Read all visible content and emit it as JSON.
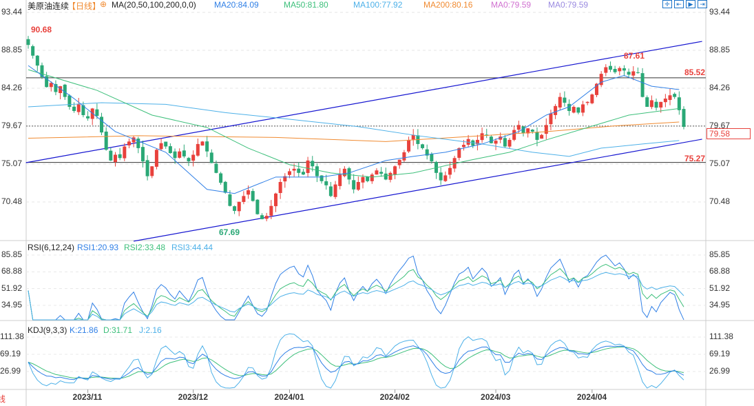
{
  "header": {
    "symbol": "美原油连续",
    "period": "【日线】",
    "ma_label": "MA(20,50,100,200,0,0)",
    "ma20": "MA20:84.09",
    "ma50": "MA50:81.80",
    "ma100": "MA100:77.92",
    "ma200": "MA200:80.16",
    "ma0a": "MA0:79.59",
    "ma0b": "MA0:79.59"
  },
  "rsi": {
    "label": "RSI(6,12,24)",
    "rsi1": "RSI1:20.93",
    "rsi2": "RSI2:33.48",
    "rsi3": "RSI3:44.44"
  },
  "kdj": {
    "label": "KDJ(9,3,3)",
    "k": "K:21.86",
    "d": "D:31.71",
    "j": "J:2.16"
  },
  "bottom_left": "线",
  "colors": {
    "up": "#e8413c",
    "down": "#2aa876",
    "ma20": "#2f7fe6",
    "ma50": "#3cbf7a",
    "ma100": "#4cb0e8",
    "ma200": "#f08a30",
    "channel": "#1515d0"
  },
  "chart_data": {
    "type": "candlestick",
    "price_axis": {
      "ticks": [
        "93.44",
        "88.85",
        "84.26",
        "79.67",
        "75.07",
        "70.48"
      ],
      "range": [
        70.48,
        93.44
      ]
    },
    "rsi_axis": {
      "ticks": [
        "85.85",
        "68.88",
        "51.92",
        "34.95"
      ]
    },
    "kdj_axis": {
      "ticks": [
        "111.38",
        "69.19",
        "26.99"
      ]
    },
    "dates": [
      "2023/11",
      "2023/12",
      "2024/01",
      "2024/02",
      "2024/03",
      "2024/04"
    ],
    "date_index": [
      13,
      36,
      57,
      80,
      102,
      123
    ],
    "closes": [
      89.5,
      88.2,
      87.0,
      85.6,
      84.4,
      84.9,
      83.8,
      84.5,
      83.2,
      82.0,
      81.5,
      82.3,
      81.0,
      80.6,
      81.8,
      80.9,
      78.9,
      76.8,
      75.5,
      76.2,
      75.8,
      77.2,
      77.8,
      78.3,
      77.0,
      75.4,
      73.6,
      74.8,
      76.8,
      77.6,
      77.2,
      76.4,
      75.8,
      76.6,
      76.0,
      75.4,
      76.2,
      77.5,
      77.8,
      76.6,
      75.2,
      74.0,
      72.8,
      71.6,
      70.0,
      69.4,
      70.5,
      71.2,
      71.9,
      70.6,
      69.0,
      68.4,
      68.8,
      70.0,
      71.5,
      72.9,
      73.6,
      74.2,
      74.5,
      74.0,
      73.8,
      75.5,
      74.8,
      73.6,
      73.0,
      72.5,
      71.2,
      72.6,
      73.8,
      74.5,
      73.2,
      72.0,
      72.9,
      73.5,
      73.0,
      73.8,
      74.3,
      73.9,
      73.2,
      74.0,
      74.8,
      75.6,
      76.5,
      78.0,
      78.6,
      77.5,
      77.0,
      76.1,
      75.4,
      74.0,
      73.1,
      73.7,
      74.6,
      75.8,
      77.0,
      77.4,
      78.1,
      77.3,
      78.0,
      78.8,
      78.5,
      77.6,
      77.9,
      78.4,
      77.2,
      78.0,
      79.2,
      79.8,
      78.8,
      79.4,
      79.0,
      78.0,
      78.6,
      79.8,
      81.2,
      82.1,
      83.2,
      82.5,
      81.5,
      82.0,
      81.3,
      82.3,
      82.6,
      83.5,
      84.8,
      86.0,
      86.8,
      86.5,
      86.2,
      86.7,
      86.4,
      85.9,
      86.3,
      86.1,
      83.2,
      82.0,
      82.8,
      81.9,
      82.6,
      83.0,
      83.4,
      83.2,
      81.6,
      79.58
    ],
    "ma20": [
      [
        0,
        87
      ],
      [
        10,
        83
      ],
      [
        19,
        79
      ],
      [
        30,
        76.5
      ],
      [
        39,
        72
      ],
      [
        45,
        71.5
      ],
      [
        54,
        73.5
      ],
      [
        64,
        73.5
      ],
      [
        70,
        74
      ],
      [
        78,
        75.5
      ],
      [
        84,
        76
      ],
      [
        91,
        76.5
      ],
      [
        99,
        77.5
      ],
      [
        107,
        79
      ],
      [
        113,
        81
      ],
      [
        118,
        82
      ],
      [
        125,
        85
      ],
      [
        130,
        85.8
      ],
      [
        136,
        84.5
      ],
      [
        142,
        84.09
      ]
    ],
    "ma50": [
      [
        0,
        86.5
      ],
      [
        15,
        84
      ],
      [
        27,
        81
      ],
      [
        39,
        79.5
      ],
      [
        48,
        77
      ],
      [
        57,
        75
      ],
      [
        66,
        74
      ],
      [
        75,
        73.5
      ],
      [
        84,
        74
      ],
      [
        96,
        75.5
      ],
      [
        105,
        76.5
      ],
      [
        113,
        78
      ],
      [
        122,
        79.5
      ],
      [
        131,
        81
      ],
      [
        142,
        81.8
      ]
    ],
    "ma100": [
      [
        0,
        82
      ],
      [
        16,
        82.5
      ],
      [
        30,
        82.3
      ],
      [
        43,
        81.3
      ],
      [
        57,
        80.5
      ],
      [
        72,
        79.6
      ],
      [
        85,
        78.5
      ],
      [
        99,
        77.5
      ],
      [
        110,
        76.5
      ],
      [
        118,
        76
      ],
      [
        125,
        77
      ],
      [
        134,
        77.5
      ],
      [
        142,
        77.92
      ]
    ],
    "ma200": [
      [
        0,
        78.2
      ],
      [
        24,
        78.5
      ],
      [
        54,
        78.3
      ],
      [
        78,
        77.8
      ],
      [
        99,
        78.5
      ],
      [
        113,
        79
      ],
      [
        128,
        79.7
      ],
      [
        142,
        80.16
      ]
    ],
    "channel_upper": [
      [
        -0.5,
        75.24
      ],
      [
        147,
        89.93
      ]
    ],
    "channel_lower": [
      [
        23,
        65.73
      ],
      [
        147,
        78.08
      ]
    ],
    "levels": {
      "high_line": "85.52",
      "low_line": "75.27",
      "current": "79.58",
      "dotted": 79.67
    },
    "annotations": {
      "max": "90.68",
      "min": "67.69",
      "recent_high": "87.61"
    }
  }
}
